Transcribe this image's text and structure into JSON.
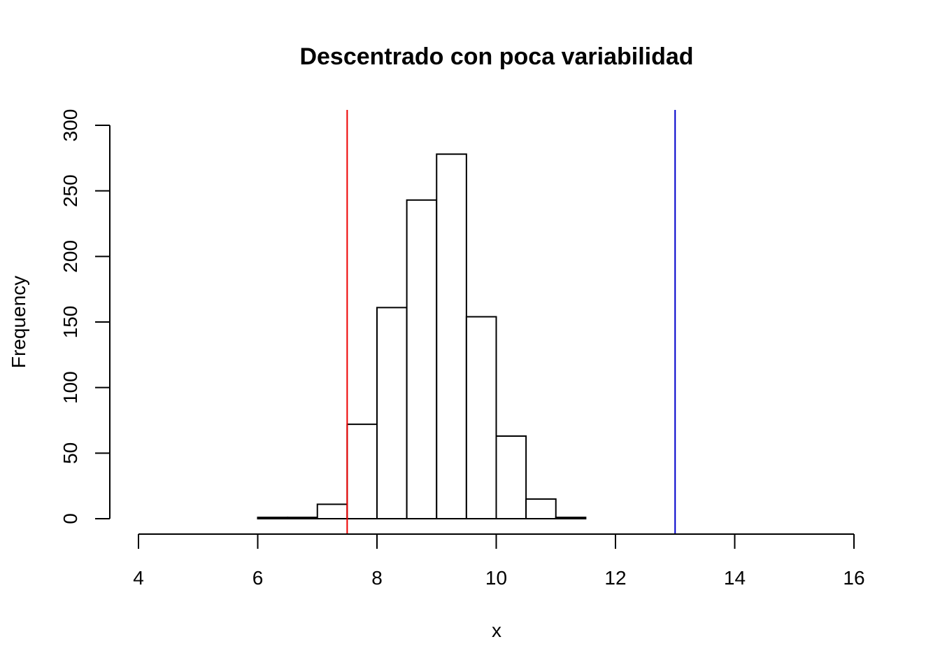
{
  "chart_data": {
    "type": "bar",
    "subtype": "histogram",
    "title": "Descentrado con poca variabilidad",
    "xlabel": "x",
    "ylabel": "Frequency",
    "xlim": [
      4,
      16
    ],
    "ylim": [
      0,
      300
    ],
    "x_ticks": [
      4,
      6,
      8,
      10,
      12,
      14,
      16
    ],
    "y_ticks": [
      0,
      50,
      100,
      150,
      200,
      250,
      300
    ],
    "bins": [
      {
        "start": 6.0,
        "end": 6.5,
        "count": 1
      },
      {
        "start": 6.5,
        "end": 7.0,
        "count": 1
      },
      {
        "start": 7.0,
        "end": 7.5,
        "count": 11
      },
      {
        "start": 7.5,
        "end": 8.0,
        "count": 72
      },
      {
        "start": 8.0,
        "end": 8.5,
        "count": 161
      },
      {
        "start": 8.5,
        "end": 9.0,
        "count": 243
      },
      {
        "start": 9.0,
        "end": 9.5,
        "count": 278
      },
      {
        "start": 9.5,
        "end": 10.0,
        "count": 154
      },
      {
        "start": 10.0,
        "end": 10.5,
        "count": 63
      },
      {
        "start": 10.5,
        "end": 11.0,
        "count": 15
      },
      {
        "start": 11.0,
        "end": 11.5,
        "count": 1
      }
    ],
    "vertical_lines": [
      {
        "x": 7.5,
        "color": "#ee0000"
      },
      {
        "x": 13.0,
        "color": "#0000cc"
      }
    ],
    "grid": false,
    "bar_fill": "#ffffff",
    "bar_stroke": "#000000"
  }
}
